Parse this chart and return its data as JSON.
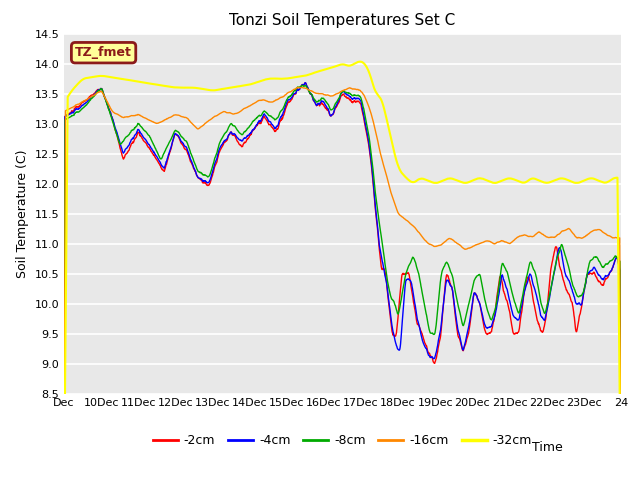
{
  "title": "Tonzi Soil Temperatures Set C",
  "xlabel": "Time",
  "ylabel": "Soil Temperature (C)",
  "ylim": [
    8.5,
    14.5
  ],
  "xlim": [
    0,
    15
  ],
  "plot_bg_color": "#e8e8e8",
  "fig_bg_color": "#ffffff",
  "grid_color": "#ffffff",
  "annotation_text": "TZ_fmet",
  "annotation_bg": "#ffff99",
  "annotation_border": "#8b1a1a",
  "legend_labels": [
    "-2cm",
    "-4cm",
    "-8cm",
    "-16cm",
    "-32cm"
  ],
  "line_colors": [
    "#ff0000",
    "#0000ff",
    "#00aa00",
    "#ff8800",
    "#ffff00"
  ],
  "xtick_positions": [
    0,
    1,
    2,
    3,
    4,
    5,
    6,
    7,
    8,
    9,
    10,
    11,
    12,
    13,
    14,
    15
  ],
  "xtick_labels": [
    "Dec",
    "10Dec",
    "11Dec",
    "12Dec",
    "13Dec",
    "14Dec",
    "15Dec",
    "16Dec",
    "17Dec",
    "18Dec",
    "19Dec",
    "20Dec",
    "21Dec",
    "22Dec",
    "23Dec",
    "24"
  ],
  "ytick_positions": [
    8.5,
    9.0,
    9.5,
    10.0,
    10.5,
    11.0,
    11.5,
    12.0,
    12.5,
    13.0,
    13.5,
    14.0,
    14.5
  ],
  "n_points": 1500
}
